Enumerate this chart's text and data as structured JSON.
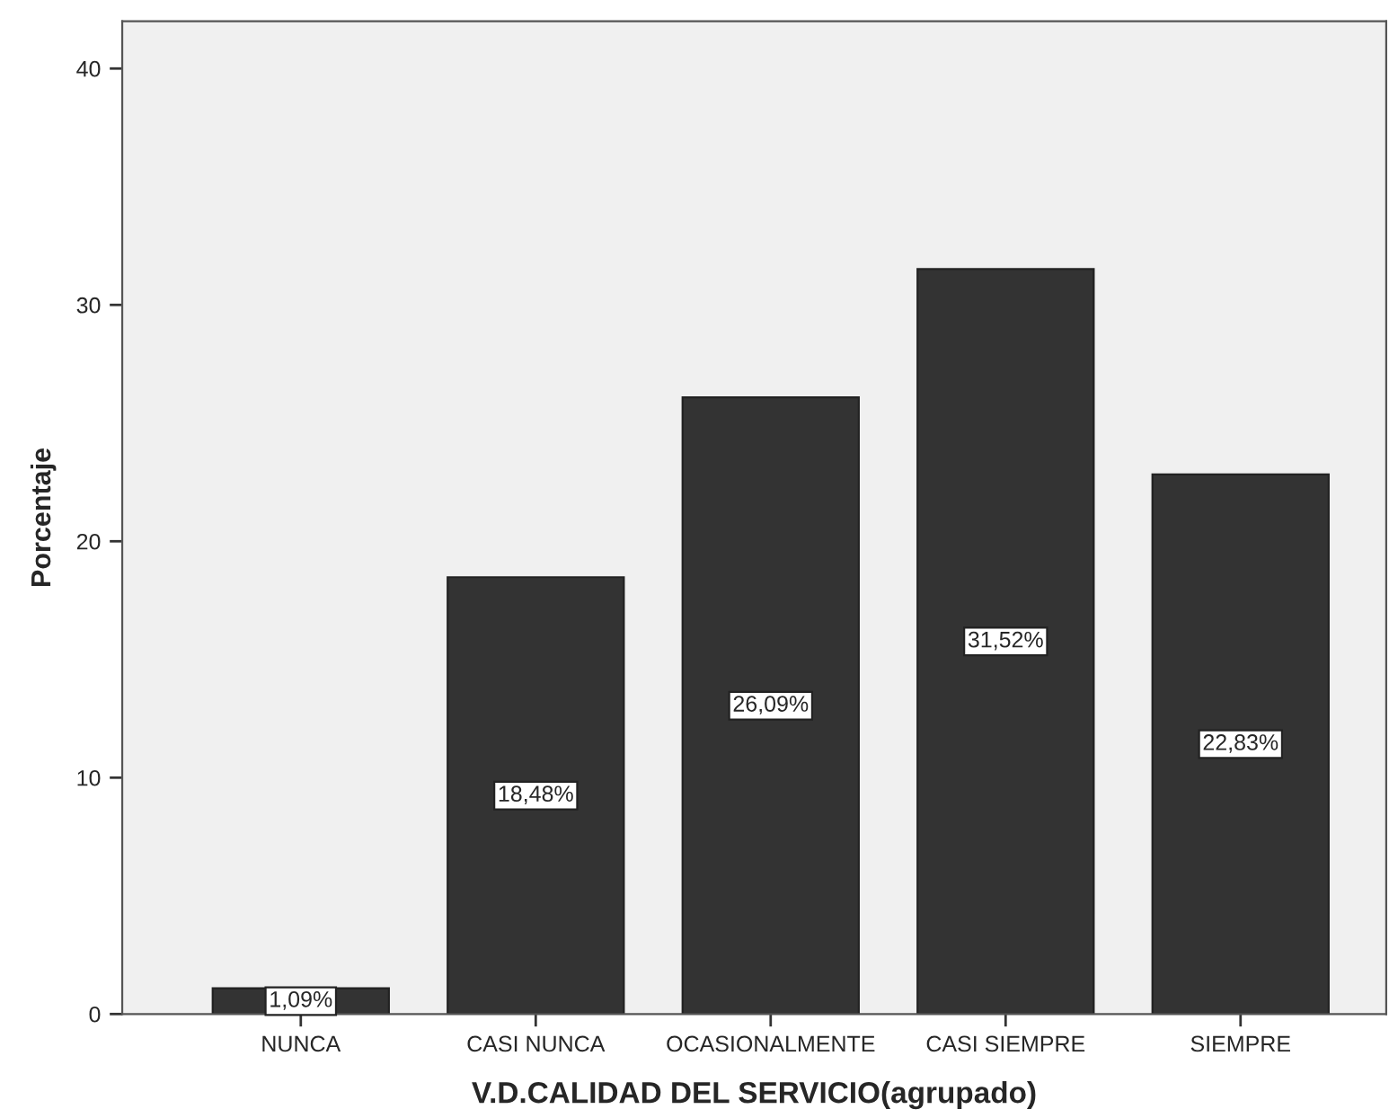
{
  "chart_data": {
    "type": "bar",
    "xlabel": "V.D.CALIDAD DEL SERVICIO(agrupado)",
    "ylabel": "Porcentaje",
    "categories": [
      "NUNCA",
      "CASI NUNCA",
      "OCASIONALMENTE",
      "CASI SIEMPRE",
      "SIEMPRE"
    ],
    "values": [
      1.09,
      18.48,
      26.09,
      31.52,
      22.83
    ],
    "value_labels": [
      "1,09%",
      "18,48%",
      "26,09%",
      "31,52%",
      "22,83%"
    ],
    "color": "#333333",
    "ylim": [
      0,
      42
    ],
    "yticks": [
      0,
      10,
      20,
      30,
      40
    ],
    "grid": false
  }
}
